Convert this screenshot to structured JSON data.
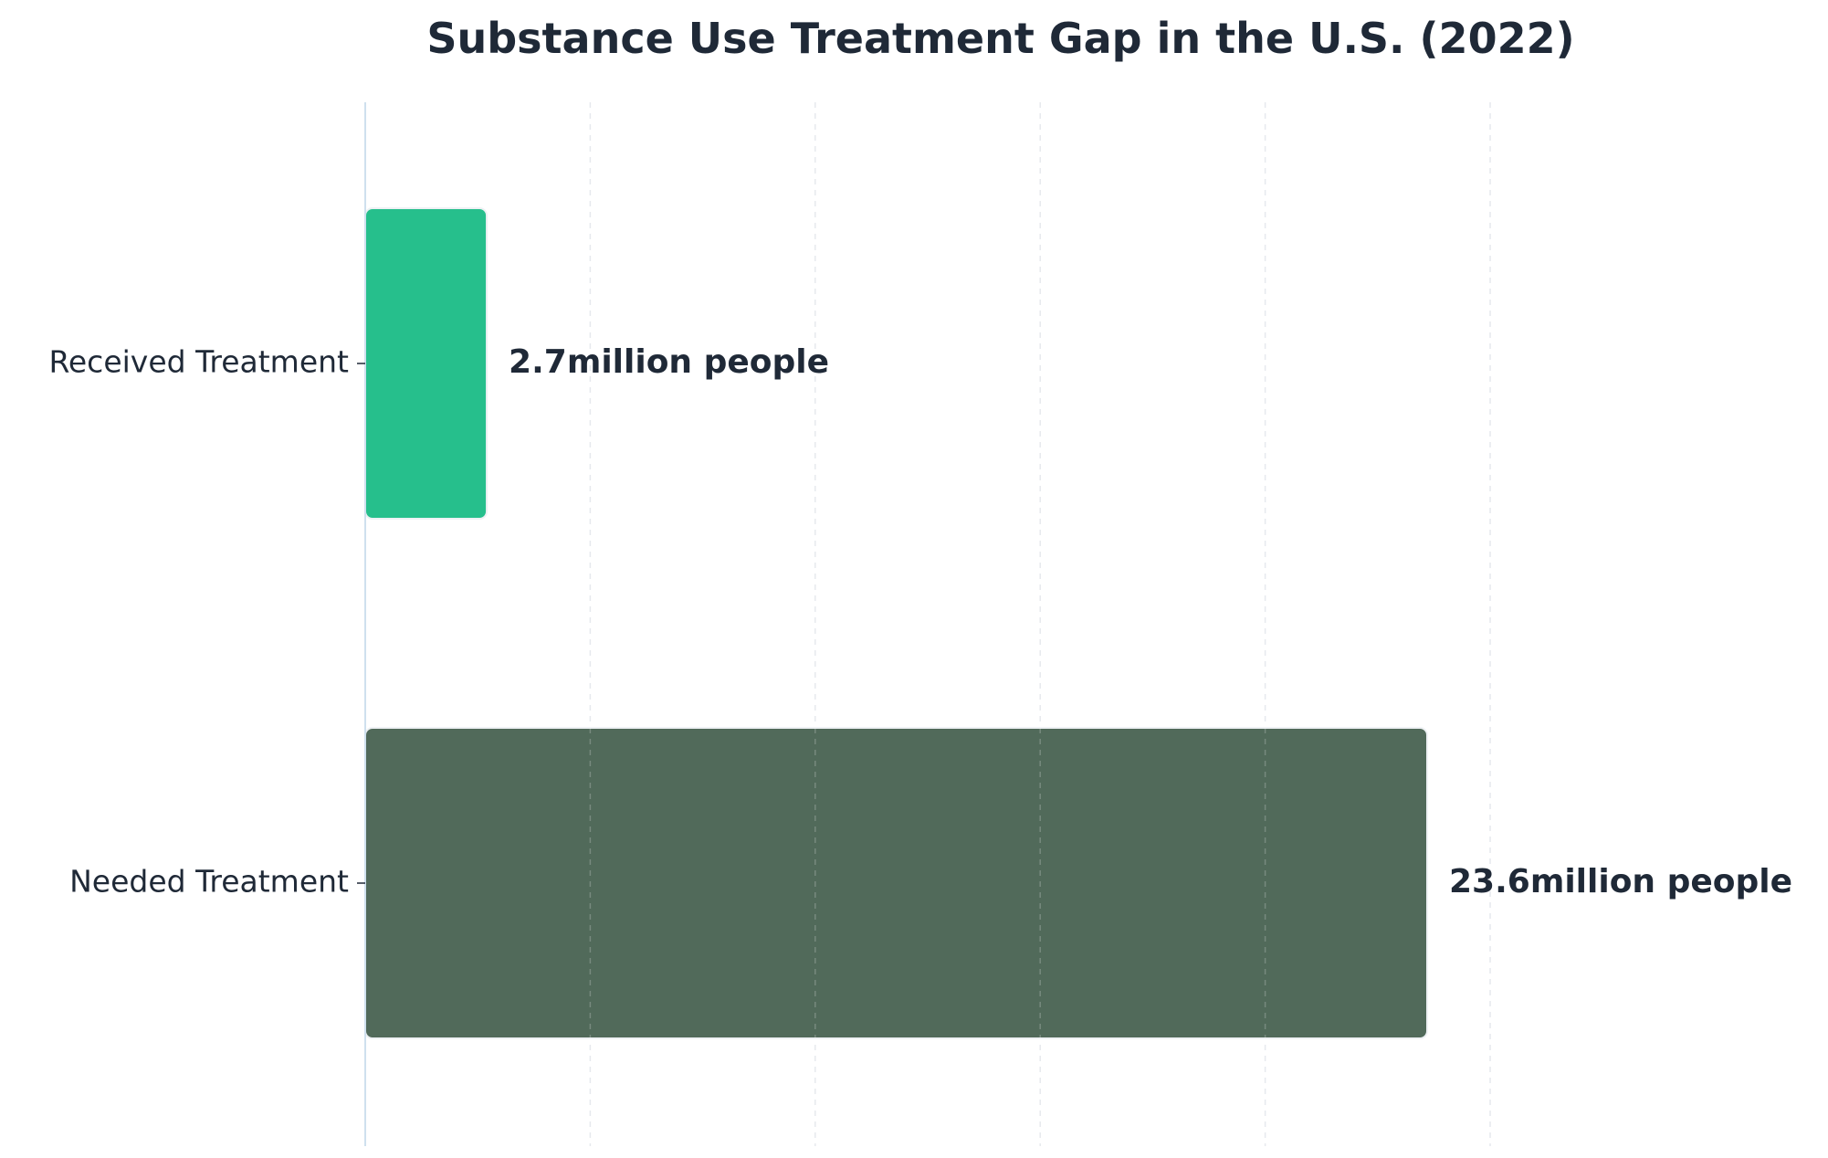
{
  "chart_data": {
    "type": "bar",
    "orientation": "horizontal",
    "title": "Substance Use Treatment Gap in the U.S. (2022)",
    "xlabel": "",
    "ylabel": "",
    "categories": [
      "Received Treatment",
      "Needed Treatment"
    ],
    "values": [
      2.7,
      23.6
    ],
    "value_labels": [
      "2.7million people",
      "23.6million people"
    ],
    "colors": [
      "#26bf8c",
      "#516a5a"
    ],
    "xlim": [
      0,
      25
    ],
    "xticks": [
      0,
      5,
      10,
      15,
      20,
      25
    ],
    "grid": true,
    "grid_axis": "x",
    "grid_style": "dashed",
    "legend": false,
    "text_color": "#1f2937",
    "axis_line_color": "#cfe0ee"
  }
}
